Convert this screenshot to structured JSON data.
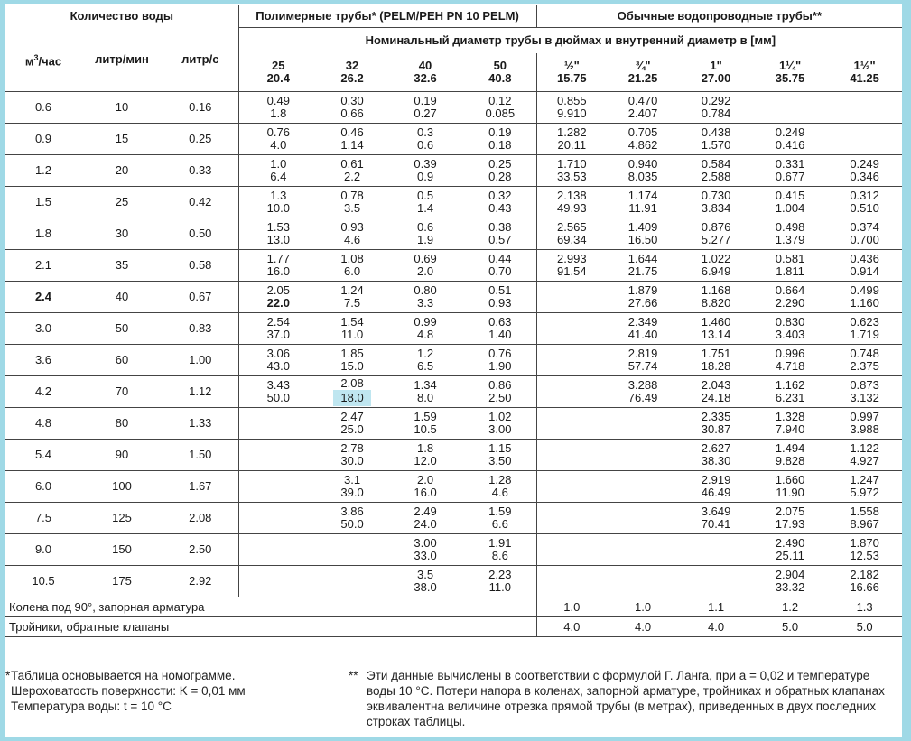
{
  "headers": {
    "water_qty": "Количество воды",
    "polymer": "Полимерные трубы* (PELM/PEH PN 10 PELM)",
    "ordinary": "Обычные водопроводные трубы**",
    "nominal": "Номинальный диаметр трубы в дюймах и внутренний диаметр в [мм]",
    "unit_m3h": "м³/час",
    "unit_lmin": "литр/мин",
    "unit_ls": "литр/с",
    "polymer_dia": [
      {
        "nom": "25",
        "inner": "20.4"
      },
      {
        "nom": "32",
        "inner": "26.2"
      },
      {
        "nom": "40",
        "inner": "32.6"
      },
      {
        "nom": "50",
        "inner": "40.8"
      }
    ],
    "ordinary_dia": [
      {
        "nom": "½\"",
        "inner": "15.75"
      },
      {
        "nom": "¾\"",
        "inner": "21.25"
      },
      {
        "nom": "1\"",
        "inner": "27.00"
      },
      {
        "nom": "1¼\"",
        "inner": "35.75"
      },
      {
        "nom": "1½\"",
        "inner": "41.25"
      }
    ]
  },
  "rows": [
    {
      "m3h": "0.6",
      "lmin": "10",
      "ls": "0.16",
      "cells": [
        [
          "0.49",
          "1.8"
        ],
        [
          "0.30",
          "0.66"
        ],
        [
          "0.19",
          "0.27"
        ],
        [
          "0.12",
          "0.085"
        ],
        [
          "0.855",
          "9.910"
        ],
        [
          "0.470",
          "2.407"
        ],
        [
          "0.292",
          "0.784"
        ],
        [
          "",
          ""
        ],
        [
          "",
          ""
        ]
      ]
    },
    {
      "m3h": "0.9",
      "lmin": "15",
      "ls": "0.25",
      "cells": [
        [
          "0.76",
          "4.0"
        ],
        [
          "0.46",
          "1.14"
        ],
        [
          "0.3",
          "0.6"
        ],
        [
          "0.19",
          "0.18"
        ],
        [
          "1.282",
          "20.11"
        ],
        [
          "0.705",
          "4.862"
        ],
        [
          "0.438",
          "1.570"
        ],
        [
          "0.249",
          "0.416"
        ],
        [
          "",
          ""
        ]
      ]
    },
    {
      "m3h": "1.2",
      "lmin": "20",
      "ls": "0.33",
      "cells": [
        [
          "1.0",
          "6.4"
        ],
        [
          "0.61",
          "2.2"
        ],
        [
          "0.39",
          "0.9"
        ],
        [
          "0.25",
          "0.28"
        ],
        [
          "1.710",
          "33.53"
        ],
        [
          "0.940",
          "8.035"
        ],
        [
          "0.584",
          "2.588"
        ],
        [
          "0.331",
          "0.677"
        ],
        [
          "0.249",
          "0.346"
        ]
      ]
    },
    {
      "m3h": "1.5",
      "lmin": "25",
      "ls": "0.42",
      "cells": [
        [
          "1.3",
          "10.0"
        ],
        [
          "0.78",
          "3.5"
        ],
        [
          "0.5",
          "1.4"
        ],
        [
          "0.32",
          "0.43"
        ],
        [
          "2.138",
          "49.93"
        ],
        [
          "1.174",
          "11.91"
        ],
        [
          "0.730",
          "3.834"
        ],
        [
          "0.415",
          "1.004"
        ],
        [
          "0.312",
          "0.510"
        ]
      ]
    },
    {
      "m3h": "1.8",
      "lmin": "30",
      "ls": "0.50",
      "cells": [
        [
          "1.53",
          "13.0"
        ],
        [
          "0.93",
          "4.6"
        ],
        [
          "0.6",
          "1.9"
        ],
        [
          "0.38",
          "0.57"
        ],
        [
          "2.565",
          "69.34"
        ],
        [
          "1.409",
          "16.50"
        ],
        [
          "0.876",
          "5.277"
        ],
        [
          "0.498",
          "1.379"
        ],
        [
          "0.374",
          "0.700"
        ]
      ]
    },
    {
      "m3h": "2.1",
      "lmin": "35",
      "ls": "0.58",
      "cells": [
        [
          "1.77",
          "16.0"
        ],
        [
          "1.08",
          "6.0"
        ],
        [
          "0.69",
          "2.0"
        ],
        [
          "0.44",
          "0.70"
        ],
        [
          "2.993",
          "91.54"
        ],
        [
          "1.644",
          "21.75"
        ],
        [
          "1.022",
          "6.949"
        ],
        [
          "0.581",
          "1.811"
        ],
        [
          "0.436",
          "0.914"
        ]
      ]
    },
    {
      "m3h": "2.4",
      "lmin": "40",
      "ls": "0.67",
      "bold": true,
      "cells": [
        [
          "2.05",
          "22.0"
        ],
        [
          "1.24",
          "7.5"
        ],
        [
          "0.80",
          "3.3"
        ],
        [
          "0.51",
          "0.93"
        ],
        [
          "",
          ""
        ],
        [
          "1.879",
          "27.66"
        ],
        [
          "1.168",
          "8.820"
        ],
        [
          "0.664",
          "2.290"
        ],
        [
          "0.499",
          "1.160"
        ]
      ]
    },
    {
      "m3h": "3.0",
      "lmin": "50",
      "ls": "0.83",
      "cells": [
        [
          "2.54",
          "37.0"
        ],
        [
          "1.54",
          "11.0"
        ],
        [
          "0.99",
          "4.8"
        ],
        [
          "0.63",
          "1.40"
        ],
        [
          "",
          ""
        ],
        [
          "2.349",
          "41.40"
        ],
        [
          "1.460",
          "13.14"
        ],
        [
          "0.830",
          "3.403"
        ],
        [
          "0.623",
          "1.719"
        ]
      ]
    },
    {
      "m3h": "3.6",
      "lmin": "60",
      "ls": "1.00",
      "cells": [
        [
          "3.06",
          "43.0"
        ],
        [
          "1.85",
          "15.0"
        ],
        [
          "1.2",
          "6.5"
        ],
        [
          "0.76",
          "1.90"
        ],
        [
          "",
          ""
        ],
        [
          "2.819",
          "57.74"
        ],
        [
          "1.751",
          "18.28"
        ],
        [
          "0.996",
          "4.718"
        ],
        [
          "0.748",
          "2.375"
        ]
      ]
    },
    {
      "m3h": "4.2",
      "lmin": "70",
      "ls": "1.12",
      "cells": [
        [
          "3.43",
          "50.0"
        ],
        [
          "2.08",
          "18.0"
        ],
        [
          "1.34",
          "8.0"
        ],
        [
          "0.86",
          "2.50"
        ],
        [
          "",
          ""
        ],
        [
          "3.288",
          "76.49"
        ],
        [
          "2.043",
          "24.18"
        ],
        [
          "1.162",
          "6.231"
        ],
        [
          "0.873",
          "3.132"
        ]
      ]
    },
    {
      "m3h": "4.8",
      "lmin": "80",
      "ls": "1.33",
      "cells": [
        [
          "",
          ""
        ],
        [
          "2.47",
          "25.0"
        ],
        [
          "1.59",
          "10.5"
        ],
        [
          "1.02",
          "3.00"
        ],
        [
          "",
          ""
        ],
        [
          "",
          ""
        ],
        [
          "2.335",
          "30.87"
        ],
        [
          "1.328",
          "7.940"
        ],
        [
          "0.997",
          "3.988"
        ]
      ]
    },
    {
      "m3h": "5.4",
      "lmin": "90",
      "ls": "1.50",
      "cells": [
        [
          "",
          ""
        ],
        [
          "2.78",
          "30.0"
        ],
        [
          "1.8",
          "12.0"
        ],
        [
          "1.15",
          "3.50"
        ],
        [
          "",
          ""
        ],
        [
          "",
          ""
        ],
        [
          "2.627",
          "38.30"
        ],
        [
          "1.494",
          "9.828"
        ],
        [
          "1.122",
          "4.927"
        ]
      ]
    },
    {
      "m3h": "6.0",
      "lmin": "100",
      "ls": "1.67",
      "cells": [
        [
          "",
          ""
        ],
        [
          "3.1",
          "39.0"
        ],
        [
          "2.0",
          "16.0"
        ],
        [
          "1.28",
          "4.6"
        ],
        [
          "",
          ""
        ],
        [
          "",
          ""
        ],
        [
          "2.919",
          "46.49"
        ],
        [
          "1.660",
          "11.90"
        ],
        [
          "1.247",
          "5.972"
        ]
      ]
    },
    {
      "m3h": "7.5",
      "lmin": "125",
      "ls": "2.08",
      "cells": [
        [
          "",
          ""
        ],
        [
          "3.86",
          "50.0"
        ],
        [
          "2.49",
          "24.0"
        ],
        [
          "1.59",
          "6.6"
        ],
        [
          "",
          ""
        ],
        [
          "",
          ""
        ],
        [
          "3.649",
          "70.41"
        ],
        [
          "2.075",
          "17.93"
        ],
        [
          "1.558",
          "8.967"
        ]
      ]
    },
    {
      "m3h": "9.0",
      "lmin": "150",
      "ls": "2.50",
      "cells": [
        [
          "",
          ""
        ],
        [
          "",
          ""
        ],
        [
          "3.00",
          "33.0"
        ],
        [
          "1.91",
          "8.6"
        ],
        [
          "",
          ""
        ],
        [
          "",
          ""
        ],
        [
          "",
          ""
        ],
        [
          "2.490",
          "25.11"
        ],
        [
          "1.870",
          "12.53"
        ]
      ]
    },
    {
      "m3h": "10.5",
      "lmin": "175",
      "ls": "2.92",
      "cells": [
        [
          "",
          ""
        ],
        [
          "",
          ""
        ],
        [
          "3.5",
          "38.0"
        ],
        [
          "2.23",
          "11.0"
        ],
        [
          "",
          ""
        ],
        [
          "",
          ""
        ],
        [
          "",
          ""
        ],
        [
          "2.904",
          "33.32"
        ],
        [
          "2.182",
          "16.66"
        ]
      ]
    }
  ],
  "footer_rows": [
    {
      "label": "Колена под 90°, запорная арматура",
      "values": [
        "1.0",
        "1.0",
        "1.1",
        "1.2",
        "1.3"
      ]
    },
    {
      "label": "Тройники, обратные клапаны",
      "values": [
        "4.0",
        "4.0",
        "4.0",
        "5.0",
        "5.0"
      ]
    }
  ],
  "notes": {
    "left_mark": "*",
    "left_lines": [
      "Таблица основывается на номограмме.",
      "Шероховатость поверхности: K = 0,01 мм",
      "Температура воды: t = 10 °C"
    ],
    "right_mark": "**",
    "right_text": "Эти данные вычислены в соответствии с формулой Г. Ланга, при a = 0,02 и температуре воды 10 °C. Потери напора в коленах, запорной арматуре, тройниках и обратных клапанах эквивалентна величине отрезка прямой трубы (в метрах), приведенных в двух последних строках таблицы."
  },
  "colors": {
    "frame": "#9fd9e6",
    "highlight": "#bfe6f0"
  },
  "highlight": {
    "row": 9,
    "col": 1,
    "line": 1
  }
}
